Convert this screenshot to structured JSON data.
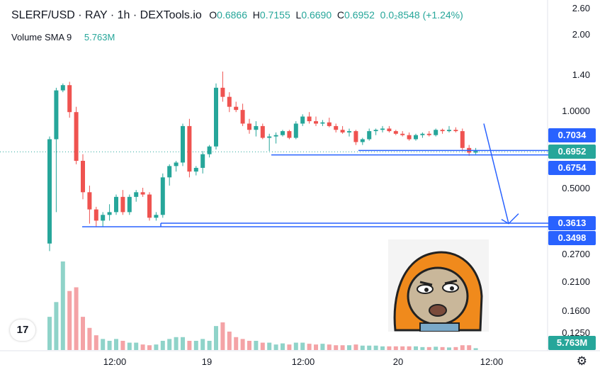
{
  "header": {
    "title": "SLERF/USD · RAY · 1h · DEXTools.io",
    "o_key": "O",
    "o_val": "0.6866",
    "h_key": "H",
    "h_val": "0.7155",
    "l_key": "L",
    "l_val": "0.6690",
    "c_key": "C",
    "c_val": "0.6952",
    "change": "0.0₂8548 (+1.24%)"
  },
  "volume": {
    "label": "Volume SMA 9",
    "value": "5.763M"
  },
  "colors": {
    "up": "#26a69a",
    "down": "#ef5350",
    "vol_up": "#8fd3c9",
    "vol_down": "#f4a3a6",
    "line": "#2962ff"
  },
  "price_axis": {
    "ticks": [
      "2.60",
      "2.00",
      "1.40",
      "1.0000",
      "0.5000",
      "0.2700",
      "0.2100",
      "0.1600",
      "0.1250"
    ],
    "labels": [
      {
        "text": "0.7034",
        "color": "#2962ff"
      },
      {
        "text": "0.6952",
        "color": "#26a69a"
      },
      {
        "text": "0.6754",
        "color": "#2962ff"
      },
      {
        "text": "0.3613",
        "color": "#2962ff"
      },
      {
        "text": "0.3498",
        "color": "#2962ff"
      }
    ],
    "volume_label": "5.763M"
  },
  "time_axis": {
    "ticks": [
      "12:00",
      "19",
      "12:00",
      "20",
      "12:00"
    ]
  },
  "tv_logo": "17",
  "chart_data": {
    "type": "candlestick",
    "price_scale": "log",
    "ohlc": [
      [
        0.3,
        0.8,
        0.28,
        0.78
      ],
      [
        0.78,
        1.25,
        0.4,
        1.22
      ],
      [
        1.22,
        1.3,
        1.2,
        1.28
      ],
      [
        1.28,
        1.32,
        0.95,
        1.0
      ],
      [
        1.0,
        1.05,
        0.62,
        0.64
      ],
      [
        0.64,
        0.68,
        0.45,
        0.48
      ],
      [
        0.48,
        0.51,
        0.36,
        0.41
      ],
      [
        0.41,
        0.42,
        0.35,
        0.37
      ],
      [
        0.37,
        0.4,
        0.35,
        0.39
      ],
      [
        0.39,
        0.43,
        0.37,
        0.4
      ],
      [
        0.4,
        0.47,
        0.39,
        0.46
      ],
      [
        0.46,
        0.49,
        0.39,
        0.4
      ],
      [
        0.4,
        0.47,
        0.39,
        0.46
      ],
      [
        0.46,
        0.49,
        0.44,
        0.48
      ],
      [
        0.48,
        0.5,
        0.46,
        0.47
      ],
      [
        0.47,
        0.48,
        0.37,
        0.38
      ],
      [
        0.38,
        0.4,
        0.37,
        0.39
      ],
      [
        0.39,
        0.57,
        0.38,
        0.55
      ],
      [
        0.55,
        0.62,
        0.51,
        0.61
      ],
      [
        0.61,
        0.64,
        0.58,
        0.63
      ],
      [
        0.63,
        0.9,
        0.61,
        0.88
      ],
      [
        0.88,
        0.94,
        0.55,
        0.58
      ],
      [
        0.58,
        0.61,
        0.56,
        0.6
      ],
      [
        0.6,
        0.7,
        0.57,
        0.68
      ],
      [
        0.68,
        0.74,
        0.66,
        0.73
      ],
      [
        0.73,
        1.3,
        0.71,
        1.25
      ],
      [
        1.25,
        1.45,
        1.1,
        1.15
      ],
      [
        1.15,
        1.2,
        1.0,
        1.05
      ],
      [
        1.05,
        1.1,
        1.0,
        1.02
      ],
      [
        1.02,
        1.08,
        0.88,
        0.9
      ],
      [
        0.9,
        0.94,
        0.82,
        0.85
      ],
      [
        0.85,
        0.92,
        0.8,
        0.88
      ],
      [
        0.88,
        0.9,
        0.78,
        0.79
      ],
      [
        0.79,
        0.82,
        0.7,
        0.8
      ],
      [
        0.8,
        0.83,
        0.75,
        0.81
      ],
      [
        0.81,
        0.85,
        0.8,
        0.84
      ],
      [
        0.84,
        0.85,
        0.78,
        0.79
      ],
      [
        0.79,
        0.92,
        0.78,
        0.9
      ],
      [
        0.9,
        0.98,
        0.88,
        0.96
      ],
      [
        0.96,
        1.0,
        0.9,
        0.92
      ],
      [
        0.92,
        0.96,
        0.88,
        0.9
      ],
      [
        0.9,
        0.93,
        0.88,
        0.91
      ],
      [
        0.91,
        0.95,
        0.87,
        0.88
      ],
      [
        0.88,
        0.9,
        0.83,
        0.85
      ],
      [
        0.85,
        0.88,
        0.82,
        0.83
      ],
      [
        0.83,
        0.86,
        0.8,
        0.84
      ],
      [
        0.84,
        0.85,
        0.74,
        0.76
      ],
      [
        0.76,
        0.79,
        0.74,
        0.78
      ],
      [
        0.78,
        0.86,
        0.77,
        0.84
      ],
      [
        0.84,
        0.86,
        0.81,
        0.85
      ],
      [
        0.85,
        0.88,
        0.83,
        0.86
      ],
      [
        0.86,
        0.88,
        0.83,
        0.84
      ],
      [
        0.84,
        0.85,
        0.81,
        0.82
      ],
      [
        0.82,
        0.84,
        0.8,
        0.81
      ],
      [
        0.81,
        0.83,
        0.77,
        0.78
      ],
      [
        0.78,
        0.82,
        0.77,
        0.81
      ],
      [
        0.81,
        0.83,
        0.79,
        0.82
      ],
      [
        0.82,
        0.84,
        0.8,
        0.81
      ],
      [
        0.81,
        0.86,
        0.8,
        0.85
      ],
      [
        0.85,
        0.86,
        0.82,
        0.84
      ],
      [
        0.84,
        0.88,
        0.83,
        0.85
      ],
      [
        0.85,
        0.87,
        0.83,
        0.84
      ],
      [
        0.84,
        0.86,
        0.7,
        0.72
      ],
      [
        0.72,
        0.74,
        0.67,
        0.69
      ],
      [
        0.69,
        0.72,
        0.68,
        0.7
      ]
    ],
    "volume": [
      9,
      13,
      24,
      16,
      17,
      9,
      6,
      4,
      3,
      2.5,
      3,
      2.5,
      2,
      2,
      1.5,
      1.3,
      1.5,
      2.5,
      3,
      3.5,
      3.5,
      2.5,
      2.5,
      3,
      2.5,
      6.5,
      7.5,
      5,
      3.5,
      3,
      2.5,
      2.5,
      2,
      2,
      1.5,
      1.8,
      1.5,
      2,
      2,
      1.7,
      1.5,
      1.7,
      1.5,
      1.3,
      1.3,
      1.3,
      1.5,
      1.2,
      1.2,
      1.2,
      1,
      1,
      1,
      1,
      1,
      1,
      0.8,
      0.8,
      0.9,
      0.8,
      0.7,
      0.8,
      1.3,
      1.3,
      0.5
    ],
    "levels": [
      0.7034,
      0.6754,
      0.3613,
      0.3498
    ],
    "arrow": {
      "from": 0.9,
      "to": 0.36
    }
  }
}
